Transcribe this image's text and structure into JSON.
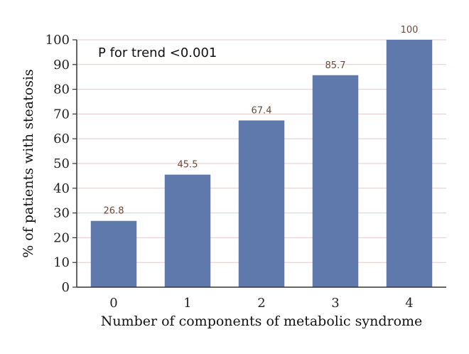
{
  "chart_data": {
    "type": "bar",
    "categories": [
      "0",
      "1",
      "2",
      "3",
      "4"
    ],
    "values": [
      26.8,
      45.5,
      67.4,
      85.7,
      100
    ],
    "data_labels": [
      "26.8",
      "45.5",
      "67.4",
      "85.7",
      "100"
    ],
    "xlabel": "Number of components of metabolic syndrome",
    "ylabel": "% of patients with steatosis",
    "ylim": [
      0,
      100
    ],
    "yticks": [
      "0",
      "10",
      "20",
      "30",
      "40",
      "50",
      "60",
      "70",
      "80",
      "90",
      "100"
    ],
    "annotation": "P for trend <0.001",
    "grid": true,
    "bar_color": "#6079ad",
    "grid_color": "#e6c8c8"
  }
}
